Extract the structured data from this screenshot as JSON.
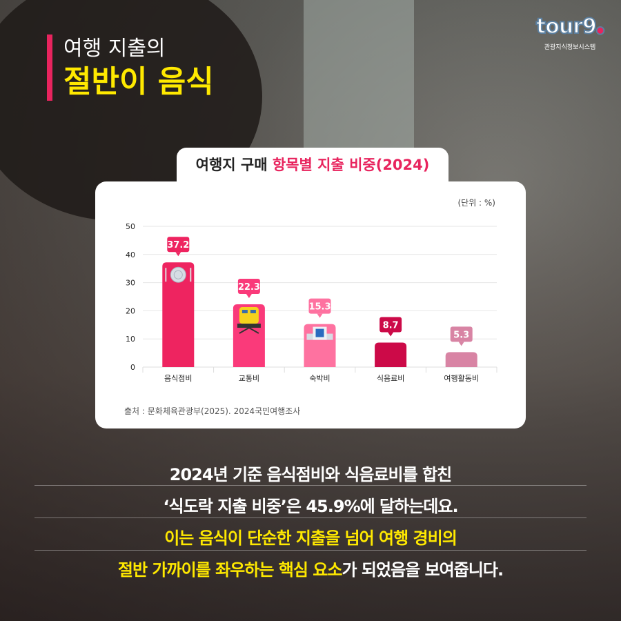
{
  "headline": {
    "line1": "여행 지출의",
    "line2": "절반이 음식"
  },
  "logo": {
    "word": "tour9",
    "subtitle": "관광지식정보시스템"
  },
  "chart_title": {
    "prefix": "여행지 구매 ",
    "accent": "항목별 지출 비중(2024)"
  },
  "colors": {
    "accent": "#e8245e",
    "highlight": "#ffe900"
  },
  "chart_data": {
    "type": "bar",
    "title": "여행지 구매 항목별 지출 비중(2024)",
    "unit_label": "(단위 : %)",
    "categories": [
      "음식점비",
      "교통비",
      "숙박비",
      "식음료비",
      "여행활동비"
    ],
    "values": [
      37.2,
      22.3,
      15.3,
      8.7,
      5.3
    ],
    "bar_colors": [
      "#ee2460",
      "#fa3a7a",
      "#fe72a0",
      "#cc0a48",
      "#d884a4"
    ],
    "icons": [
      "plate-cutlery-icon",
      "train-icon",
      "hotel-icon",
      null,
      null
    ],
    "ylim": [
      0,
      50
    ],
    "yticks": [
      0,
      10,
      20,
      30,
      40,
      50
    ],
    "grid": true,
    "source": "출처 : 문화체육관광부(2025). 2024국민여행조사"
  },
  "body": {
    "line1": "2024년 기준 음식점비와 식음료비를 합친",
    "line2": "‘식도락 지출 비중’은 45.9%에 달하는데요.",
    "line3": "이는 음식이 단순한 지출을 넘어 여행 경비의",
    "line4_highlight": "절반 가까이를 좌우하는 핵심 요소",
    "line4_rest": "가 되었음을 보여줍니다."
  }
}
